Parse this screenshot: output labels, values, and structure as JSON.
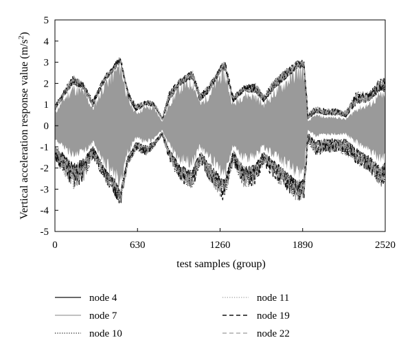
{
  "chart_data": {
    "type": "line",
    "title": "",
    "xlabel": "test samples (group)",
    "ylabel": "Vertical acceleration response value (m/s",
    "ylabel_superscript": "2",
    "ylabel_suffix": ")",
    "xlim": [
      0,
      2520
    ],
    "ylim": [
      -5,
      5
    ],
    "x_ticks": [
      "0",
      "630",
      "1260",
      "1890",
      "2520"
    ],
    "y_ticks": [
      "5",
      "4",
      "3",
      "2",
      "1",
      "0",
      "-1",
      "-2",
      "-3",
      "-4",
      "-5"
    ],
    "grid": false,
    "legend_position": "bottom",
    "fill_color": "#9a9a9a",
    "envelope": {
      "x": [
        0,
        60,
        140,
        220,
        290,
        380,
        450,
        500,
        560,
        620,
        700,
        760,
        820,
        870,
        950,
        1050,
        1110,
        1180,
        1280,
        1300,
        1360,
        1440,
        1530,
        1590,
        1680,
        1750,
        1850,
        1900,
        1930,
        1990,
        2060,
        2150,
        2220,
        2300,
        2400,
        2490,
        2520
      ],
      "upper": [
        0.6,
        1.2,
        1.8,
        1.6,
        0.8,
        2.0,
        2.5,
        2.9,
        1.2,
        0.6,
        0.9,
        0.8,
        0.2,
        1.0,
        1.8,
        2.1,
        1.0,
        1.5,
        2.6,
        2.4,
        1.0,
        1.5,
        1.4,
        1.0,
        1.6,
        2.0,
        2.6,
        2.6,
        0.2,
        0.5,
        0.4,
        0.4,
        0.3,
        0.8,
        1.0,
        1.5,
        1.3
      ],
      "lower": [
        -0.6,
        -1.0,
        -1.4,
        -1.2,
        -0.8,
        -1.8,
        -2.2,
        -2.8,
        -1.2,
        -0.6,
        -0.8,
        -0.6,
        -0.2,
        -0.9,
        -1.6,
        -1.8,
        -1.0,
        -1.5,
        -2.2,
        -2.2,
        -0.9,
        -1.6,
        -1.5,
        -1.0,
        -1.4,
        -1.8,
        -2.2,
        -2.2,
        -0.2,
        -0.5,
        -0.4,
        -0.4,
        -0.4,
        -0.8,
        -1.2,
        -1.6,
        -1.4
      ],
      "peak_upper": [
        1.0,
        1.6,
        2.4,
        2.0,
        1.2,
        2.4,
        2.9,
        3.3,
        1.6,
        1.0,
        1.2,
        1.1,
        0.4,
        1.6,
        2.2,
        2.6,
        1.5,
        2.0,
        3.0,
        3.0,
        1.4,
        1.9,
        2.0,
        1.5,
        2.2,
        2.6,
        3.1,
        3.1,
        0.6,
        0.9,
        0.8,
        0.8,
        0.7,
        1.6,
        1.6,
        2.3,
        2.2
      ],
      "peak_lower": [
        -1.6,
        -2.2,
        -3.0,
        -2.6,
        -1.5,
        -2.6,
        -3.2,
        -3.8,
        -1.8,
        -1.2,
        -1.4,
        -1.0,
        -0.5,
        -1.6,
        -2.6,
        -3.0,
        -1.8,
        -2.6,
        -3.5,
        -3.3,
        -1.8,
        -2.9,
        -2.8,
        -1.8,
        -2.6,
        -2.9,
        -3.6,
        -3.4,
        -0.8,
        -1.4,
        -1.3,
        -1.2,
        -1.4,
        -1.8,
        -2.2,
        -2.9,
        -2.6
      ]
    },
    "series": [
      {
        "name": "node 4",
        "style": "solid",
        "color": "#111111",
        "width": 1.3
      },
      {
        "name": "node 7",
        "style": "solid",
        "color": "#9a9a9a",
        "width": 1.3
      },
      {
        "name": "node 10",
        "style": "dotted",
        "color": "#111111",
        "width": 1.3
      },
      {
        "name": "node 11",
        "style": "dotted",
        "color": "#9a9a9a",
        "width": 1.3
      },
      {
        "name": "node 19",
        "style": "dashed",
        "color": "#111111",
        "width": 1.5
      },
      {
        "name": "node 22",
        "style": "dashed",
        "color": "#9a9a9a",
        "width": 1.3
      }
    ]
  }
}
